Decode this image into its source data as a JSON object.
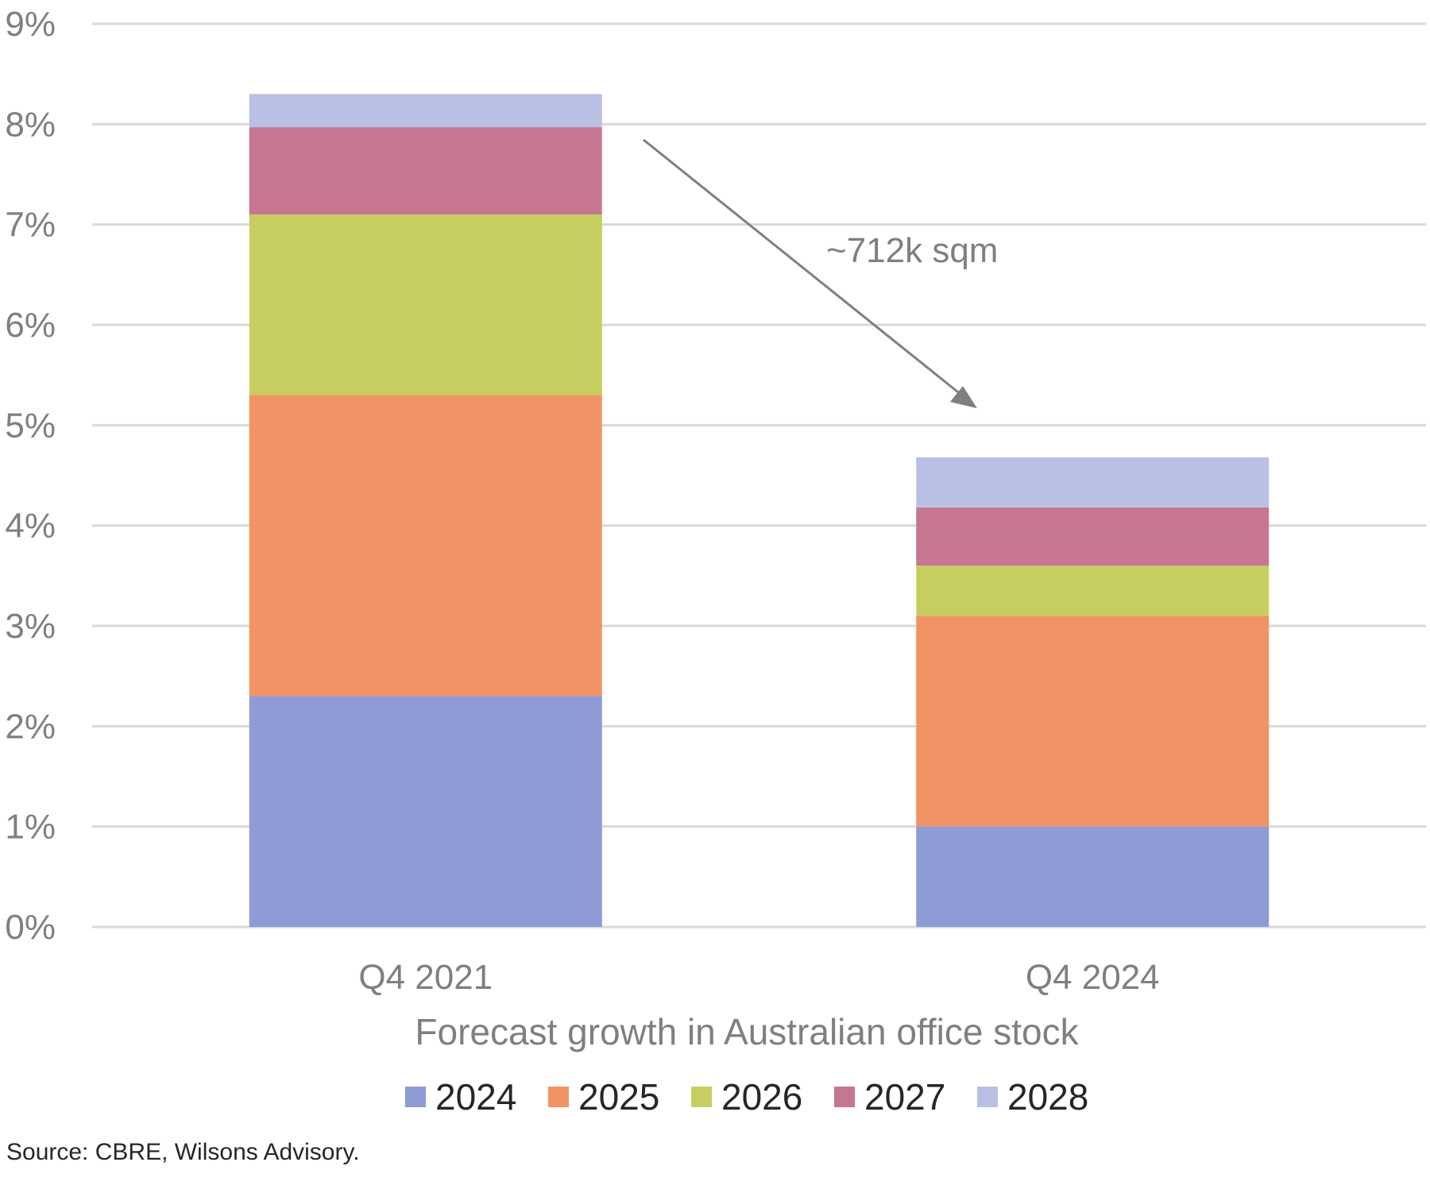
{
  "chart_data": {
    "type": "bar",
    "stacked": true,
    "categories": [
      "Q4 2021",
      "Q4 2024"
    ],
    "series": [
      {
        "name": "2024",
        "color": "#8e9bd5",
        "values": [
          2.3,
          1.0
        ]
      },
      {
        "name": "2025",
        "color": "#f29365",
        "values": [
          3.0,
          2.1
        ]
      },
      {
        "name": "2026",
        "color": "#c6ce5f",
        "values": [
          1.8,
          0.5
        ]
      },
      {
        "name": "2027",
        "color": "#c6778f",
        "values": [
          0.87,
          0.58
        ]
      },
      {
        "name": "2028",
        "color": "#babfe4",
        "values": [
          0.33,
          0.5
        ]
      }
    ],
    "xlabel": "Forecast growth in Australian office stock",
    "ylabel": "",
    "ylim": [
      0,
      9
    ],
    "yticks": [
      "0%",
      "1%",
      "2%",
      "3%",
      "4%",
      "5%",
      "6%",
      "7%",
      "8%",
      "9%"
    ],
    "grid": true,
    "legend_position": "bottom",
    "annotation": {
      "text": "~712k sqm",
      "arrow_color": "#7f7f7f"
    }
  },
  "source": "Source: CBRE, Wilsons Advisory."
}
